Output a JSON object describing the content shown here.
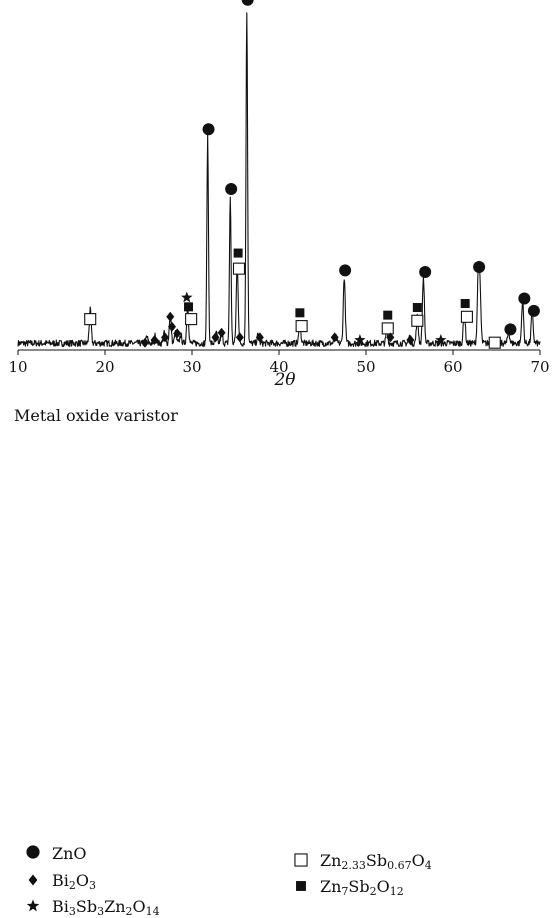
{
  "chart_data": {
    "type": "line",
    "xlabel": "2θ",
    "ylabel": "",
    "xlim": [
      10,
      70
    ],
    "x_ticks": [
      "10",
      "20",
      "30",
      "40",
      "50",
      "60",
      "70"
    ],
    "grid": false,
    "caption": "Metal oxide varistor",
    "background_noise": 0.03,
    "peaks": [
      {
        "x": 18.3,
        "y": 0.1
      },
      {
        "x": 24.8,
        "y": 0.02
      },
      {
        "x": 25.8,
        "y": 0.025
      },
      {
        "x": 26.8,
        "y": 0.03
      },
      {
        "x": 27.5,
        "y": 0.09
      },
      {
        "x": 28.1,
        "y": 0.03
      },
      {
        "x": 28.7,
        "y": 0.025
      },
      {
        "x": 29.5,
        "y": 0.11
      },
      {
        "x": 31.8,
        "y": 0.62
      },
      {
        "x": 32.8,
        "y": 0.03
      },
      {
        "x": 33.4,
        "y": 0.035
      },
      {
        "x": 34.4,
        "y": 0.44
      },
      {
        "x": 35.2,
        "y": 0.24
      },
      {
        "x": 36.3,
        "y": 1.0
      },
      {
        "x": 37.6,
        "y": 0.025
      },
      {
        "x": 42.4,
        "y": 0.06
      },
      {
        "x": 46.5,
        "y": 0.02
      },
      {
        "x": 47.5,
        "y": 0.2
      },
      {
        "x": 52.4,
        "y": 0.035
      },
      {
        "x": 55.0,
        "y": 0.02
      },
      {
        "x": 55.9,
        "y": 0.08
      },
      {
        "x": 56.6,
        "y": 0.2
      },
      {
        "x": 61.3,
        "y": 0.1
      },
      {
        "x": 62.9,
        "y": 0.2
      },
      {
        "x": 63.1,
        "y": 0.16
      },
      {
        "x": 64.8,
        "y": 0.015
      },
      {
        "x": 66.4,
        "y": 0.035
      },
      {
        "x": 68.0,
        "y": 0.13
      },
      {
        "x": 69.1,
        "y": 0.1
      }
    ],
    "markers": [
      {
        "x": 18.3,
        "level": 0.093,
        "symbol": "open-square",
        "series": "Zn2.33Sb0.67O4"
      },
      {
        "x": 24.6,
        "level": 0.022,
        "symbol": "diamond",
        "series": "Bi2O3"
      },
      {
        "x": 25.7,
        "level": 0.03,
        "symbol": "diamond",
        "series": "Bi2O3"
      },
      {
        "x": 26.9,
        "level": 0.038,
        "symbol": "diamond",
        "series": "Bi2O3"
      },
      {
        "x": 27.5,
        "level": 0.1,
        "symbol": "diamond",
        "series": "Bi2O3"
      },
      {
        "x": 27.7,
        "level": 0.07,
        "symbol": "diamond",
        "series": "Bi2O3"
      },
      {
        "x": 28.3,
        "level": 0.05,
        "symbol": "diamond",
        "series": "Bi2O3"
      },
      {
        "x": 29.4,
        "level": 0.158,
        "symbol": "star",
        "series": "Bi3Sb3Zn2O14"
      },
      {
        "x": 29.6,
        "level": 0.13,
        "symbol": "filled-square",
        "series": "Zn7Sb2O12"
      },
      {
        "x": 29.9,
        "level": 0.093,
        "symbol": "open-square",
        "series": "Zn2.33Sb0.67O4"
      },
      {
        "x": 31.9,
        "level": 0.665,
        "symbol": "circle",
        "series": "ZnO"
      },
      {
        "x": 32.7,
        "level": 0.038,
        "symbol": "diamond",
        "series": "Bi2O3"
      },
      {
        "x": 33.4,
        "level": 0.052,
        "symbol": "diamond",
        "series": "Bi2O3"
      },
      {
        "x": 34.5,
        "level": 0.485,
        "symbol": "circle",
        "series": "ZnO"
      },
      {
        "x": 35.3,
        "level": 0.292,
        "symbol": "filled-square",
        "series": "Zn7Sb2O12"
      },
      {
        "x": 35.4,
        "level": 0.245,
        "symbol": "open-square",
        "series": "Zn2.33Sb0.67O4"
      },
      {
        "x": 35.5,
        "level": 0.038,
        "symbol": "diamond",
        "series": "Bi2O3"
      },
      {
        "x": 36.4,
        "level": 1.055,
        "symbol": "circle",
        "series": "ZnO"
      },
      {
        "x": 37.8,
        "level": 0.038,
        "symbol": "diamond",
        "series": "Bi2O3"
      },
      {
        "x": 42.4,
        "level": 0.112,
        "symbol": "filled-square",
        "series": "Zn7Sb2O12"
      },
      {
        "x": 42.6,
        "level": 0.072,
        "symbol": "open-square",
        "series": "Zn2.33Sb0.67O4"
      },
      {
        "x": 46.4,
        "level": 0.038,
        "symbol": "diamond",
        "series": "Bi2O3"
      },
      {
        "x": 47.6,
        "level": 0.24,
        "symbol": "circle",
        "series": "ZnO"
      },
      {
        "x": 49.3,
        "level": 0.03,
        "symbol": "star",
        "series": "Bi3Sb3Zn2O14"
      },
      {
        "x": 52.5,
        "level": 0.105,
        "symbol": "filled-square",
        "series": "Zn7Sb2O12"
      },
      {
        "x": 52.5,
        "level": 0.065,
        "symbol": "open-square",
        "series": "Zn2.33Sb0.67O4"
      },
      {
        "x": 52.8,
        "level": 0.038,
        "symbol": "diamond",
        "series": "Bi2O3"
      },
      {
        "x": 55.1,
        "level": 0.03,
        "symbol": "diamond",
        "series": "Bi2O3"
      },
      {
        "x": 55.9,
        "level": 0.128,
        "symbol": "filled-square",
        "series": "Zn7Sb2O12"
      },
      {
        "x": 55.9,
        "level": 0.088,
        "symbol": "open-square",
        "series": "Zn2.33Sb0.67O4"
      },
      {
        "x": 56.8,
        "level": 0.235,
        "symbol": "circle",
        "series": "ZnO"
      },
      {
        "x": 58.6,
        "level": 0.03,
        "symbol": "star",
        "series": "Bi3Sb3Zn2O14"
      },
      {
        "x": 61.4,
        "level": 0.14,
        "symbol": "filled-square",
        "series": "Zn7Sb2O12"
      },
      {
        "x": 61.6,
        "level": 0.1,
        "symbol": "open-square",
        "series": "Zn2.33Sb0.67O4"
      },
      {
        "x": 63.0,
        "level": 0.25,
        "symbol": "circle",
        "series": "ZnO"
      },
      {
        "x": 64.8,
        "level": 0.022,
        "symbol": "open-square",
        "series": "Zn2.33Sb0.67O4"
      },
      {
        "x": 66.6,
        "level": 0.062,
        "symbol": "circle",
        "series": "ZnO"
      },
      {
        "x": 68.2,
        "level": 0.155,
        "symbol": "circle",
        "series": "ZnO"
      },
      {
        "x": 69.3,
        "level": 0.118,
        "symbol": "circle",
        "series": "ZnO"
      }
    ],
    "legend_placement": "bottom",
    "legend": [
      {
        "symbol": "circle",
        "label_parts": [
          [
            "ZnO",
            ""
          ]
        ]
      },
      {
        "symbol": "diamond",
        "label_parts": [
          [
            "Bi",
            ""
          ],
          [
            "2",
            "sub"
          ],
          [
            "O",
            ""
          ],
          [
            "3",
            "sub"
          ]
        ]
      },
      {
        "symbol": "star",
        "label_parts": [
          [
            "Bi",
            ""
          ],
          [
            "3",
            "sub"
          ],
          [
            "Sb",
            ""
          ],
          [
            "3",
            "sub"
          ],
          [
            "Zn",
            ""
          ],
          [
            "2",
            "sub"
          ],
          [
            "O",
            ""
          ],
          [
            "14",
            "sub"
          ]
        ]
      },
      {
        "symbol": "open-square",
        "label_parts": [
          [
            "Zn",
            ""
          ],
          [
            "2.33",
            "sub"
          ],
          [
            "Sb",
            ""
          ],
          [
            "0.67",
            "sub"
          ],
          [
            "O",
            ""
          ],
          [
            "4",
            "sub"
          ]
        ]
      },
      {
        "symbol": "filled-square",
        "label_parts": [
          [
            "Zn",
            ""
          ],
          [
            "7",
            "sub"
          ],
          [
            "Sb",
            ""
          ],
          [
            "2",
            "sub"
          ],
          [
            "O",
            ""
          ],
          [
            "12",
            "sub"
          ]
        ]
      }
    ]
  },
  "colors": {
    "line": "#111111",
    "marker": "#111111",
    "background": "#ffffff"
  }
}
